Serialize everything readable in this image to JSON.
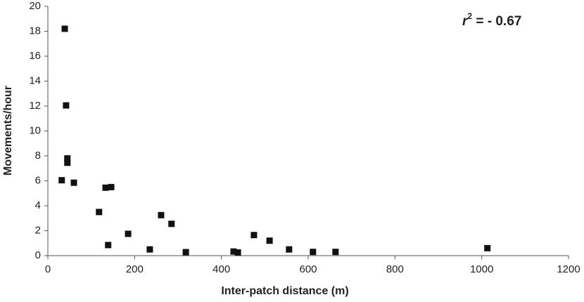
{
  "chart_data": {
    "type": "scatter",
    "x_label": "Inter-patch distance (m)",
    "y_label": "Movements/hour",
    "annotation": {
      "symbol": "r",
      "exponent": "2",
      "text": " = - 0.67"
    },
    "series": [
      {
        "color": "#111111",
        "x": [
          39,
          42,
          45,
          45,
          32,
          60,
          133,
          146,
          118,
          139,
          185,
          235,
          261,
          285,
          318,
          428,
          438,
          475,
          511,
          556,
          611,
          663,
          1013
        ],
        "values": [
          18.2,
          12.05,
          7.8,
          7.45,
          6.05,
          5.85,
          5.45,
          5.5,
          3.5,
          0.85,
          1.75,
          0.5,
          3.25,
          2.55,
          0.28,
          0.33,
          0.25,
          1.65,
          1.2,
          0.5,
          0.3,
          0.3,
          0.6
        ]
      }
    ],
    "xlim": [
      0,
      1200
    ],
    "xticks": [
      0,
      200,
      400,
      600,
      800,
      1000,
      1200
    ],
    "ylim": [
      0,
      20
    ],
    "yticks": [
      0,
      2,
      4,
      6,
      8,
      10,
      12,
      14,
      16,
      18,
      20
    ],
    "grid": false
  }
}
